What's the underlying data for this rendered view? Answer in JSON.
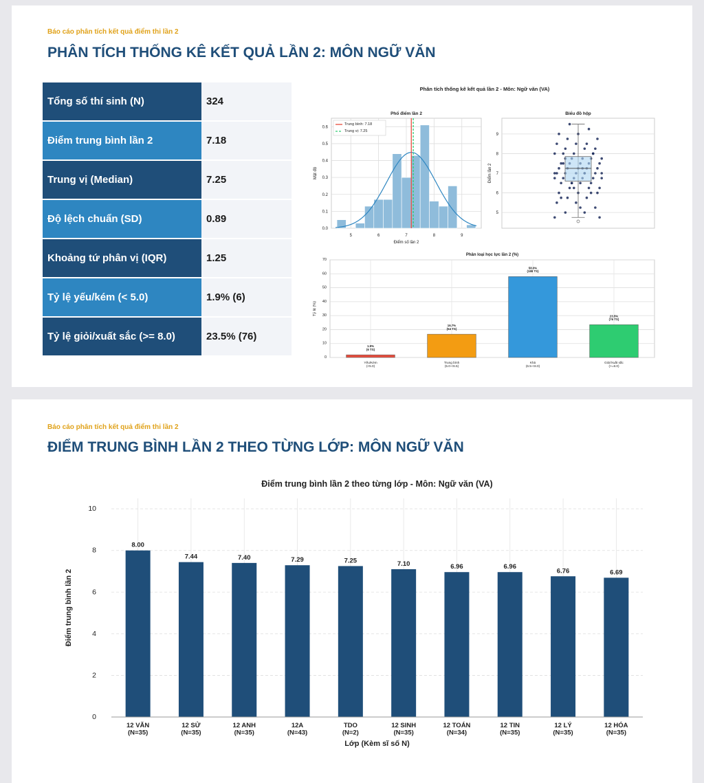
{
  "slides": [
    {
      "kicker": "Báo cáo phân tích kết quả điểm thi lần 2",
      "title": "PHÂN TÍCH THỐNG KÊ KẾT QUẢ LẦN 2: MÔN NGỮ VĂN"
    },
    {
      "kicker": "Báo cáo phân tích kết quả điểm thi lần 2",
      "title": "ĐIỂM TRUNG BÌNH LẦN 2 THEO TỪNG LỚP: MÔN NGỮ VĂN"
    }
  ],
  "table": {
    "rows": [
      [
        "Tổng số thí sinh (N)",
        "324"
      ],
      [
        "Điểm trung bình lần 2",
        "7.18"
      ],
      [
        "Trung vị (Median)",
        "7.25"
      ],
      [
        "Độ lệch chuẩn (SD)",
        "0.89"
      ],
      [
        "Khoảng tứ phân vị (IQR)",
        "1.25"
      ],
      [
        "Tỷ lệ yếu/kém (< 5.0)",
        "1.9% (6)"
      ],
      [
        "Tỷ lệ giỏi/xuất sắc (>= 8.0)",
        "23.5% (76)"
      ]
    ]
  },
  "figure_title": "Phân tích thống kê kết quả lần 2 - Môn: Ngữ văn (VA)",
  "chart_data": [
    {
      "type": "histogram",
      "title": "Phổ điểm lần 2",
      "xlabel": "Điểm số lần 2",
      "ylabel": "Mật độ",
      "color": "#8fbcdb",
      "grid": true,
      "bins": [
        4.5,
        4.83,
        5.17,
        5.5,
        5.83,
        6.17,
        6.5,
        6.83,
        7.17,
        7.5,
        7.83,
        8.17,
        8.5,
        8.83,
        9.17,
        9.5
      ],
      "values": [
        0.05,
        0,
        0.03,
        0.13,
        0.17,
        0.17,
        0.44,
        0.3,
        0.43,
        0.61,
        0.16,
        0.13,
        0.25,
        0,
        0.02
      ],
      "xlim": [
        4.3,
        9.7
      ],
      "xticks": [
        5,
        6,
        7,
        8,
        9
      ],
      "ylim": [
        0,
        0.65
      ],
      "yticks": [
        {
          "value": 0,
          "label": "0.0"
        },
        {
          "value": 0.1,
          "label": "0.1"
        },
        {
          "value": 0.2,
          "label": "0.2"
        },
        {
          "value": 0.3,
          "label": "0.3"
        },
        {
          "value": 0.4,
          "label": "0.4"
        },
        {
          "value": 0.5,
          "label": "0.5"
        },
        {
          "value": 0.6,
          "label": "0.6"
        }
      ],
      "mean": 7.18,
      "sd": 0.89,
      "median": 7.25,
      "mean_label": "Trung bình: 7.18",
      "median_label": "Trung vị: 7.25",
      "mean_color": "#e74c3c",
      "median_color": "#2ecc71",
      "kde_color": "#2e86c1"
    },
    {
      "type": "box",
      "title": "Biểu đồ hộp",
      "ylabel": "Điểm lần 2",
      "grid": true,
      "color": "#aed6f1",
      "point_color": "#1b2a5b",
      "ylim": [
        4.2,
        9.8
      ],
      "yticks": [
        5,
        6,
        7,
        8,
        9
      ],
      "q1": 6.6,
      "median": 7.25,
      "q3": 7.85,
      "whisker_low": 4.75,
      "whisker_high": 9.5,
      "outliers": [
        4.55
      ],
      "points": [
        4.75,
        5,
        5,
        5.25,
        5.5,
        5.5,
        5.75,
        5.75,
        6,
        6,
        6,
        6.25,
        6.25,
        6.25,
        6.5,
        6.5,
        6.5,
        6.5,
        6.75,
        6.75,
        6.75,
        6.75,
        6.75,
        7,
        7,
        7,
        7,
        7,
        7,
        7.25,
        7.25,
        7.25,
        7.25,
        7.25,
        7.5,
        7.5,
        7.5,
        7.5,
        7.5,
        7.75,
        7.75,
        7.75,
        7.75,
        8,
        8,
        8,
        8,
        8.25,
        8.25,
        8.25,
        8.5,
        8.5,
        8.5,
        8.75,
        8.75,
        9,
        9,
        9.25,
        9.5,
        4.75,
        5.25,
        5.75,
        6,
        6.5,
        7,
        7.25,
        7.5,
        8,
        6.25,
        6.75,
        7,
        7.75
      ]
    },
    {
      "type": "bar",
      "title": "Phân loại học lực lần 2 (%)",
      "ylabel": "Tỷ lệ (%)",
      "grid": true,
      "categories": [
        "Yếu/Kém\n(<5.0)",
        "Trung bình\n(5.0-<6.5)",
        "Khá\n(6.5-<8.0)",
        "Giỏi/Xuất sắc\n(>=8.0)"
      ],
      "values": [
        1.9,
        16.7,
        58.0,
        23.5
      ],
      "value_labels": [
        "1.9%\n(6 TS)",
        "16.7%\n(54 TS)",
        "58.0%\n(188 TS)",
        "23.5%\n(76 TS)"
      ],
      "colors": [
        "#e74c3c",
        "#f39c12",
        "#3498db",
        "#2ecc71"
      ],
      "ylim": [
        0,
        70
      ],
      "yticks": [
        0,
        10,
        20,
        30,
        40,
        50,
        60,
        70
      ]
    },
    {
      "type": "bar",
      "title": "Điểm trung bình lần 2 theo từng lớp - Môn: Ngữ văn (VA)",
      "xlabel": "Lớp (Kèm sĩ số N)",
      "ylabel": "Điểm trung bình lần 2",
      "grid": true,
      "categories": [
        "12 VĂN\n(N=35)",
        "12 SỬ\n(N=35)",
        "12 ANH\n(N=35)",
        "12A\n(N=43)",
        "TDO\n(N=2)",
        "12 SINH\n(N=35)",
        "12 TOÁN\n(N=34)",
        "12 TIN\n(N=35)",
        "12 LÝ\n(N=35)",
        "12 HÓA\n(N=35)"
      ],
      "values": [
        8.0,
        7.44,
        7.4,
        7.29,
        7.25,
        7.1,
        6.96,
        6.96,
        6.76,
        6.69
      ],
      "value_labels": [
        "8.00",
        "7.44",
        "7.40",
        "7.29",
        "7.25",
        "7.10",
        "6.96",
        "6.96",
        "6.76",
        "6.69"
      ],
      "color": "#1f4e79",
      "ylim": [
        0,
        10.5
      ],
      "yticks": [
        0,
        2,
        4,
        6,
        8,
        10
      ]
    }
  ]
}
